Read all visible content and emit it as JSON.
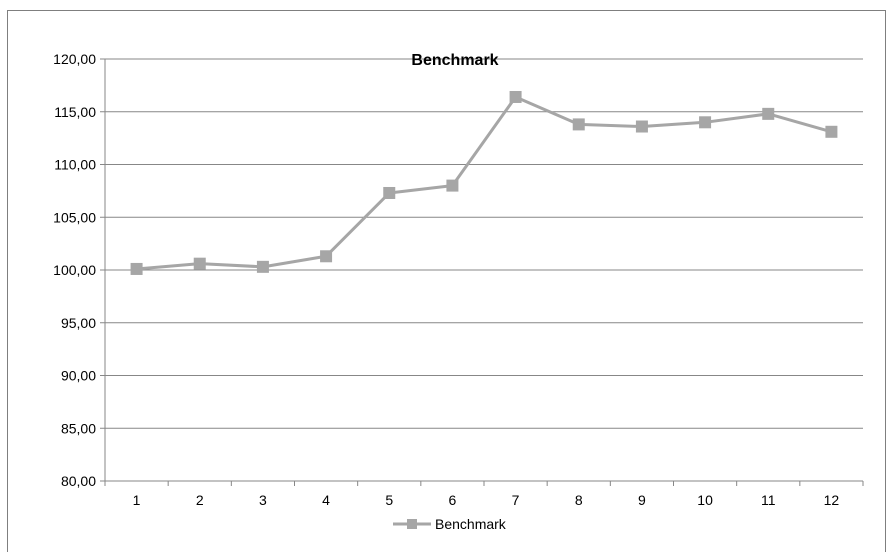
{
  "chart_data": {
    "type": "line",
    "title": "Benchmark",
    "xlabel": "",
    "ylabel": "",
    "categories": [
      "1",
      "2",
      "3",
      "4",
      "5",
      "6",
      "7",
      "8",
      "9",
      "10",
      "11",
      "12"
    ],
    "series": [
      {
        "name": "Benchmark",
        "values": [
          100.1,
          100.6,
          100.3,
          101.3,
          107.3,
          108.0,
          116.4,
          113.8,
          113.6,
          114.0,
          114.8,
          113.1
        ]
      }
    ],
    "ylim": [
      80,
      120
    ],
    "ytick_labels": [
      "80,00",
      "85,00",
      "90,00",
      "95,00",
      "100,00",
      "105,00",
      "110,00",
      "115,00",
      "120,00"
    ],
    "grid": "horizontal",
    "legend": "bottom-center",
    "colors": {
      "series": "#a6a6a6",
      "grid": "#878787",
      "axis": "#878787",
      "border": "#7f7f7f"
    }
  }
}
